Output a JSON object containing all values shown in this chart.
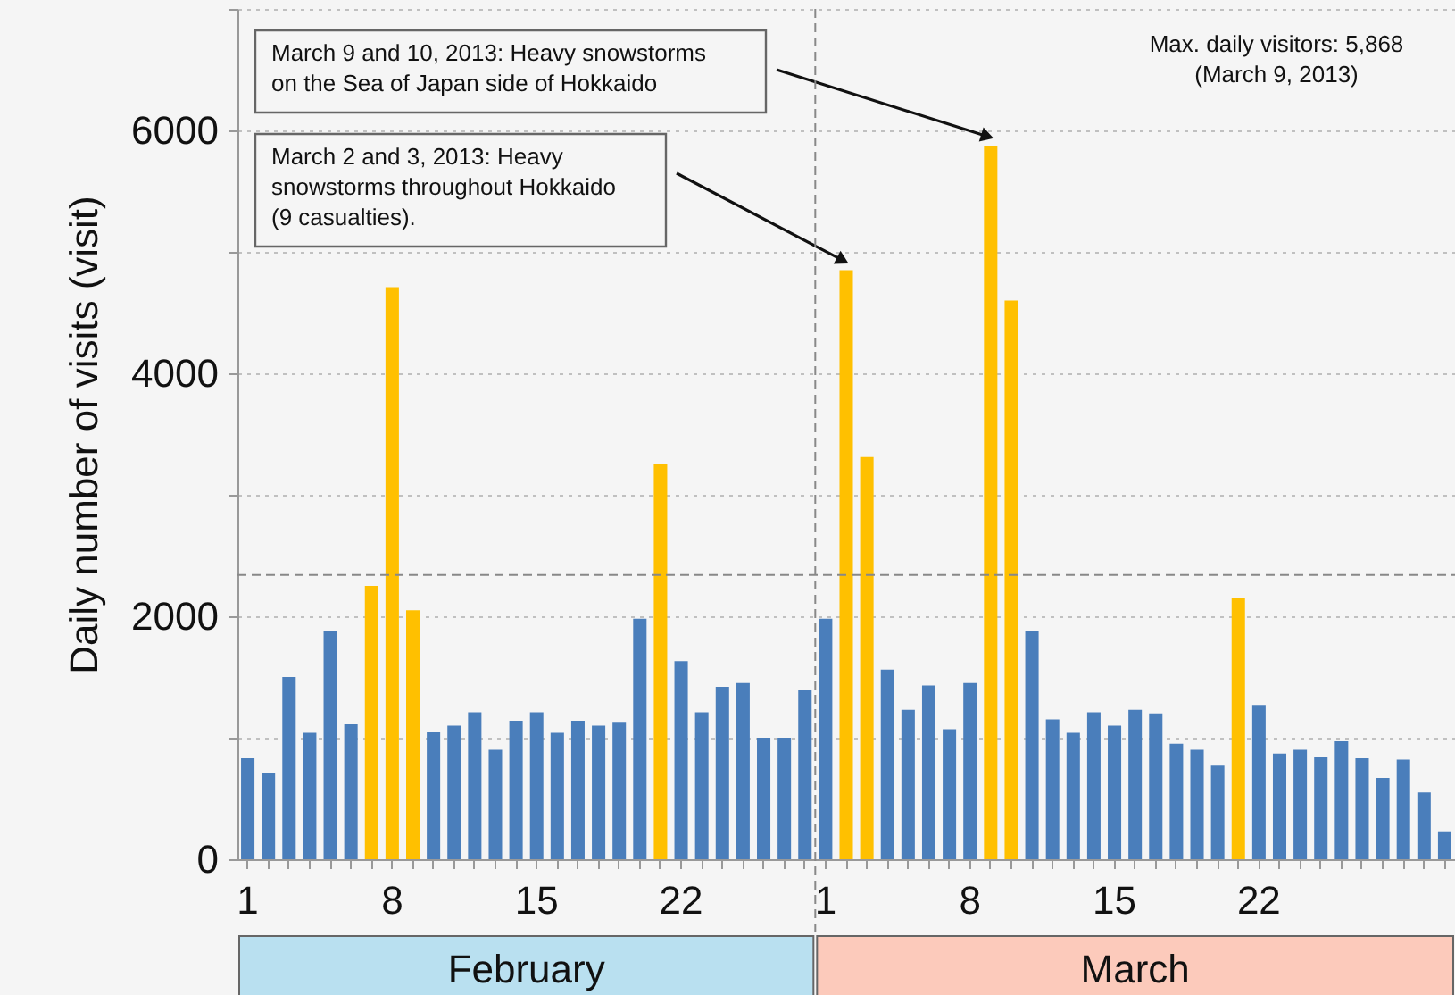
{
  "chart_data": {
    "type": "bar",
    "ylabel": "Daily number of visits (visit)",
    "categories": [
      "1",
      null,
      null,
      null,
      null,
      null,
      null,
      "8",
      null,
      null,
      null,
      null,
      null,
      null,
      "15",
      null,
      null,
      null,
      null,
      null,
      null,
      "22",
      null,
      null,
      null,
      null,
      null,
      null,
      "1",
      null,
      null,
      null,
      null,
      null,
      null,
      "8",
      null,
      null,
      null,
      null,
      null,
      null,
      "15",
      null,
      null,
      null,
      null,
      null,
      null,
      "22",
      null,
      null,
      null,
      null,
      null,
      null,
      null,
      null,
      null
    ],
    "values": [
      830,
      710,
      1500,
      1040,
      1880,
      1110,
      2250,
      4710,
      2050,
      1050,
      1100,
      1210,
      900,
      1140,
      1210,
      1040,
      1140,
      1100,
      1130,
      1980,
      3250,
      1630,
      1210,
      1420,
      1450,
      1000,
      1000,
      1390,
      1980,
      4850,
      3310,
      1560,
      1230,
      1430,
      1070,
      1450,
      5868,
      4600,
      1880,
      1150,
      1040,
      1210,
      1100,
      1230,
      1200,
      950,
      900,
      770,
      2150,
      1270,
      870,
      900,
      840,
      970,
      830,
      670,
      820,
      550,
      230
    ],
    "colors": [
      "#4a7ebb",
      "#4a7ebb",
      "#4a7ebb",
      "#4a7ebb",
      "#4a7ebb",
      "#4a7ebb",
      "#ffc000",
      "#ffc000",
      "#ffc000",
      "#4a7ebb",
      "#4a7ebb",
      "#4a7ebb",
      "#4a7ebb",
      "#4a7ebb",
      "#4a7ebb",
      "#4a7ebb",
      "#4a7ebb",
      "#4a7ebb",
      "#4a7ebb",
      "#4a7ebb",
      "#ffc000",
      "#4a7ebb",
      "#4a7ebb",
      "#4a7ebb",
      "#4a7ebb",
      "#4a7ebb",
      "#4a7ebb",
      "#4a7ebb",
      "#4a7ebb",
      "#ffc000",
      "#ffc000",
      "#4a7ebb",
      "#4a7ebb",
      "#4a7ebb",
      "#4a7ebb",
      "#4a7ebb",
      "#ffc000",
      "#ffc000",
      "#4a7ebb",
      "#4a7ebb",
      "#4a7ebb",
      "#4a7ebb",
      "#4a7ebb",
      "#4a7ebb",
      "#4a7ebb",
      "#4a7ebb",
      "#4a7ebb",
      "#4a7ebb",
      "#ffc000",
      "#4a7ebb",
      "#4a7ebb",
      "#4a7ebb",
      "#4a7ebb",
      "#4a7ebb",
      "#4a7ebb",
      "#4a7ebb",
      "#4a7ebb",
      "#4a7ebb",
      "#4a7ebb"
    ],
    "ylim": [
      0,
      7000
    ],
    "yticks": [
      0,
      {
        "value": 1000,
        "label": null
      },
      2000,
      {
        "value": 3000,
        "label": null
      },
      4000,
      {
        "value": 5000,
        "label": null
      },
      6000,
      {
        "value": 7000,
        "label": null
      }
    ],
    "grid": "y",
    "ref_lines": [
      {
        "axis": "y",
        "value": 2340,
        "color": "#888888",
        "line_style": "dashed"
      }
    ],
    "annotations": [
      "March 9 and 10, 2013: Heavy snowstorms on the Sea of Japan side of Hokkaido",
      "March 2 and 3, 2013: Heavy snowstorms throughout Hokkaido (9 casualties).",
      "Max. daily visitors: 5,868 (March 9, 2013)",
      "February",
      "March"
    ]
  }
}
